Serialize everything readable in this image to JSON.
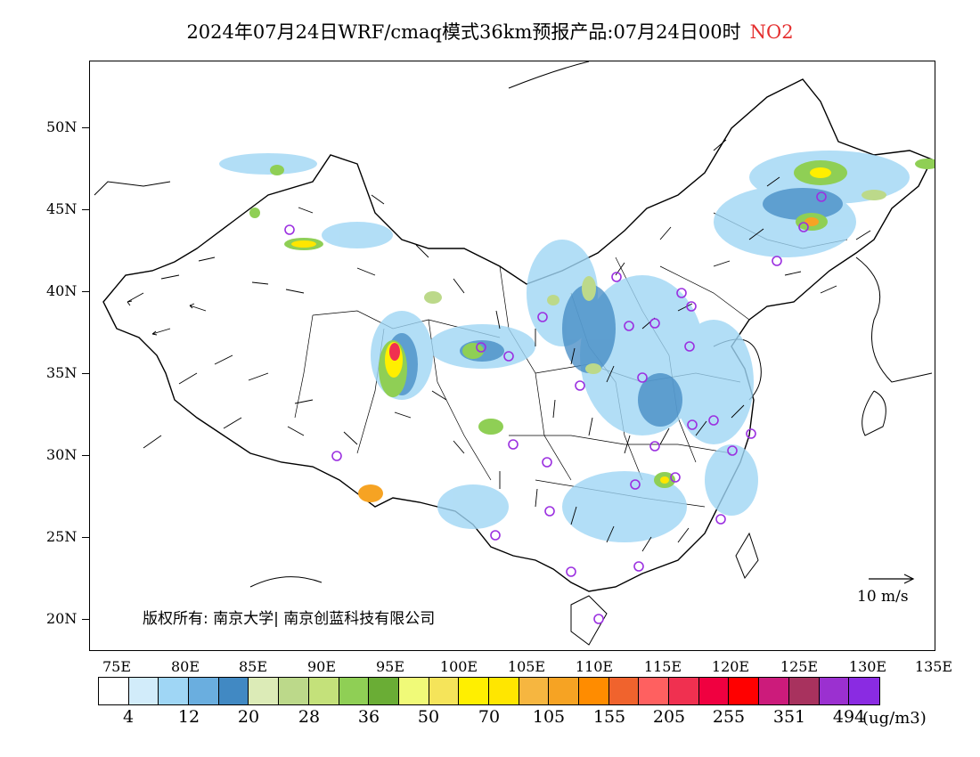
{
  "title": {
    "text": "2024年07月24日WRF/cmaq模式36km预报产品:07月24日00时",
    "pollutant": "NO2"
  },
  "map": {
    "lat_labels": [
      "50N",
      "45N",
      "40N",
      "35N",
      "30N",
      "25N",
      "20N"
    ],
    "lon_labels": [
      "75E",
      "80E",
      "85E",
      "90E",
      "95E",
      "100E",
      "105E",
      "110E",
      "115E",
      "120E",
      "125E",
      "130E",
      "135E"
    ],
    "copyright": "版权所有: 南京大学| 南京创蓝科技有限公司",
    "wind_reference": "10 m/s",
    "hotspot_color": "#e8a020",
    "station_marker_color": "#9b30e0"
  },
  "colorbar": {
    "colors": [
      "#ffffff",
      "#d2ecfa",
      "#9fd6f5",
      "#6aaedf",
      "#4189c3",
      "#dcebb7",
      "#bcd98a",
      "#c4e17a",
      "#8fcf55",
      "#6aad35",
      "#f0fa78",
      "#f5e45a",
      "#ffef00",
      "#ffe600",
      "#f6b640",
      "#f6a323",
      "#ff8c00",
      "#f0632d",
      "#ff6060",
      "#f03050",
      "#f00040",
      "#ff0000",
      "#cc1b7b",
      "#a8325e",
      "#9b30d0",
      "#8a2be2"
    ],
    "labels": [
      "4",
      "12",
      "20",
      "28",
      "36",
      "50",
      "70",
      "105",
      "155",
      "205",
      "255",
      "351",
      "494"
    ],
    "unit": "(ug/m3)"
  }
}
